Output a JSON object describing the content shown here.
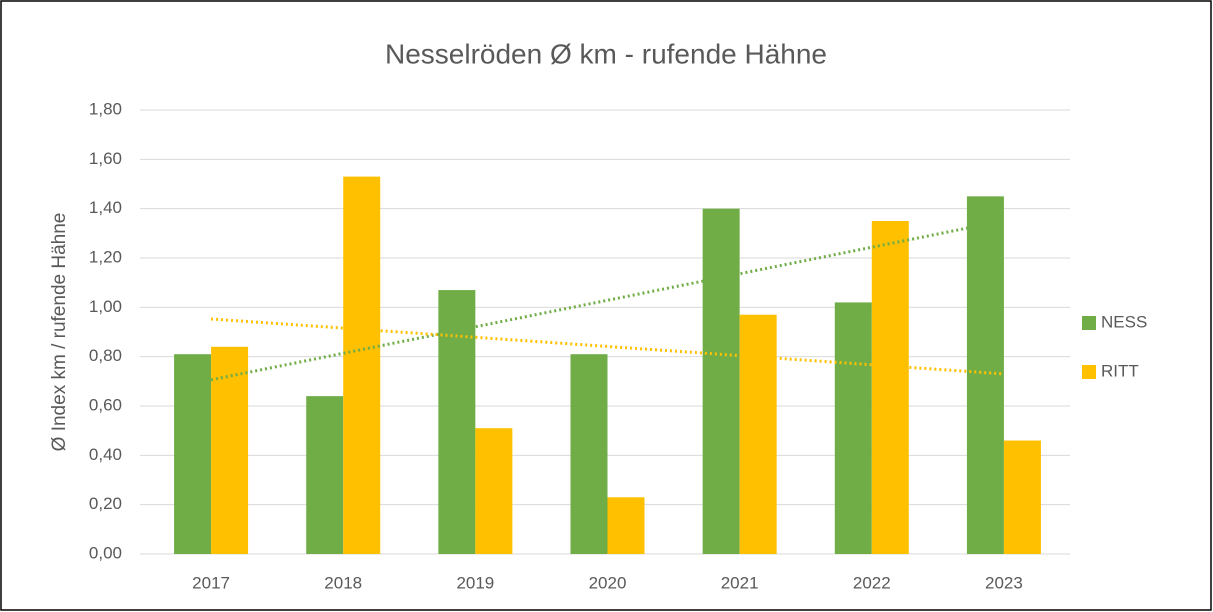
{
  "chart_data": {
    "type": "bar",
    "title": "Nesselröden Ø km - rufende Hähne",
    "y_label": "Ø Index km / rufende Hähne",
    "categories": [
      "2017",
      "2018",
      "2019",
      "2020",
      "2021",
      "2022",
      "2023"
    ],
    "series": [
      {
        "name": "NESS",
        "color": "#70ad47",
        "values": [
          0.81,
          0.64,
          1.07,
          0.81,
          1.4,
          1.02,
          1.45
        ]
      },
      {
        "name": "RITT",
        "color": "#ffc000",
        "values": [
          0.84,
          1.53,
          0.51,
          0.23,
          0.97,
          1.35,
          0.46
        ]
      }
    ],
    "ylim": [
      0,
      1.8
    ],
    "yticks": [
      {
        "value": 0,
        "label": "0,00"
      },
      {
        "value": 0.2,
        "label": "0,20"
      },
      {
        "value": 0.4,
        "label": "0,40"
      },
      {
        "value": 0.6,
        "label": "0,60"
      },
      {
        "value": 0.8,
        "label": "0,80"
      },
      {
        "value": 1.0,
        "label": "1,00"
      },
      {
        "value": 1.2,
        "label": "1,20"
      },
      {
        "value": 1.4,
        "label": "1,40"
      },
      {
        "value": 1.6,
        "label": "1,60"
      },
      {
        "value": 1.8,
        "label": "1,80"
      }
    ],
    "grid": true,
    "legend": "right",
    "trendline": true
  }
}
